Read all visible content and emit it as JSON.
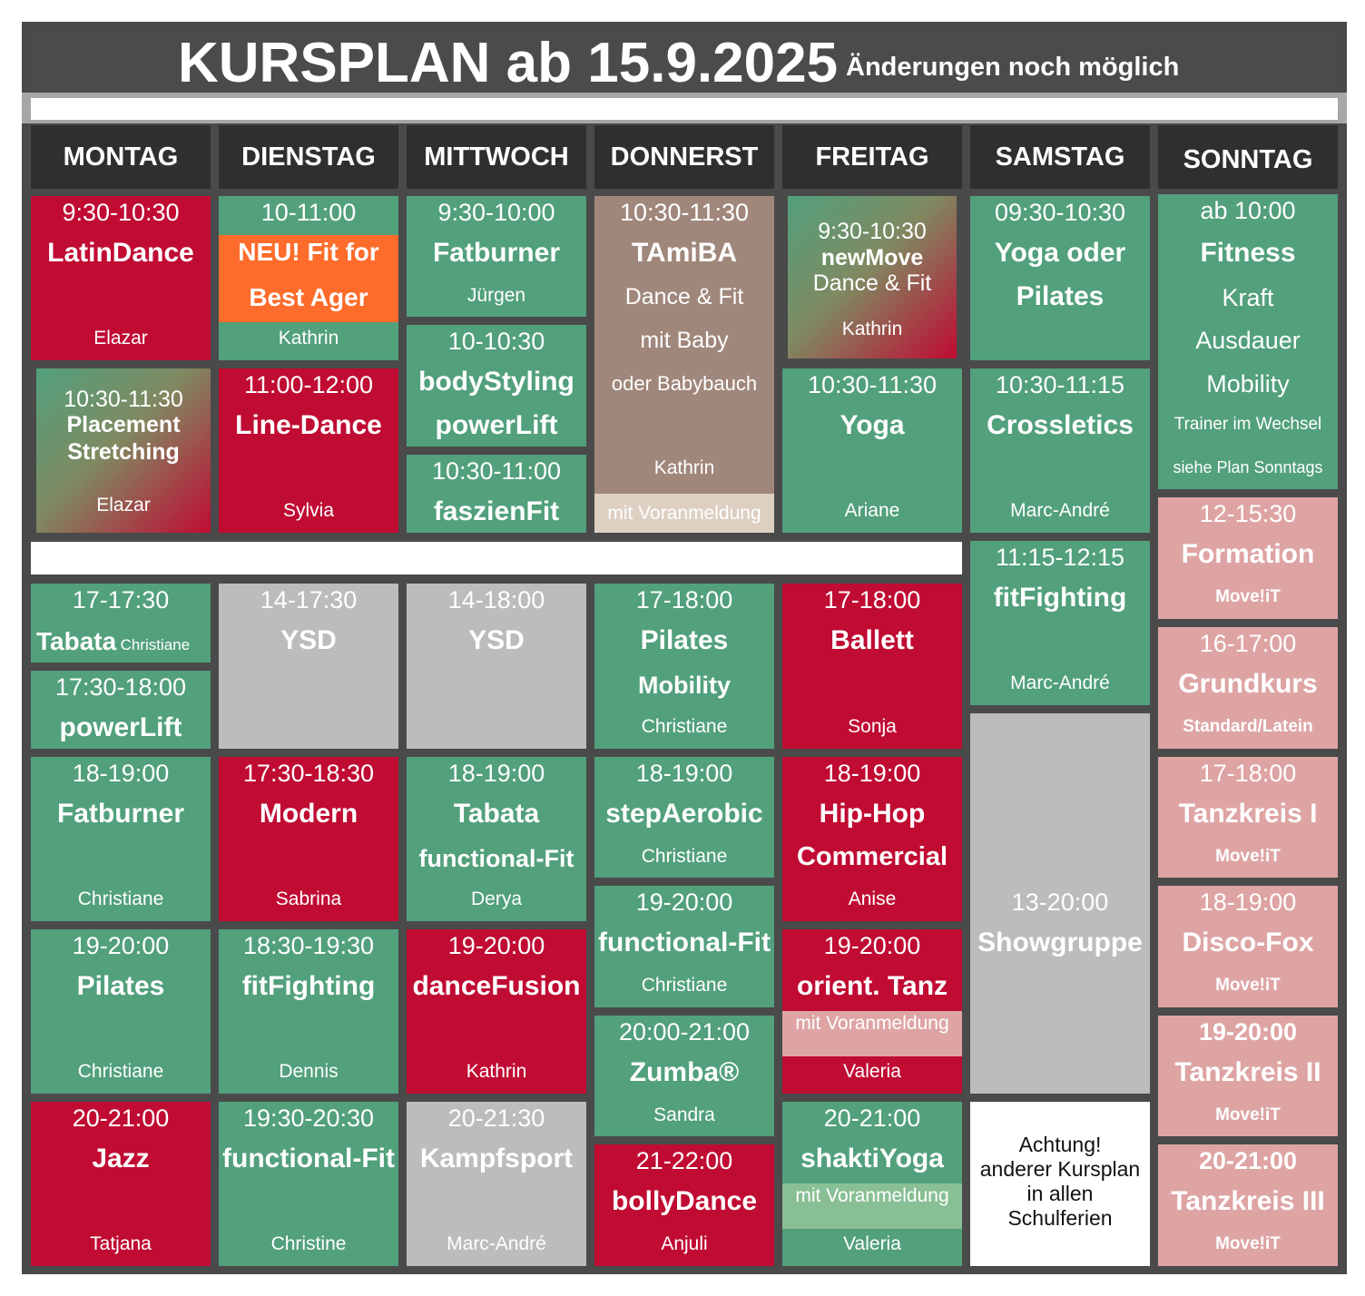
{
  "header": {
    "title": "KURSPLAN  ab 15.9.2025",
    "note": "Änderungen noch möglich"
  },
  "days": [
    "MONTAG",
    "DIENSTAG",
    "MITTWOCH",
    "DONNERST",
    "FREITAG",
    "SAMSTAG",
    "SONNTAG"
  ],
  "cards": [
    {
      "id": "mo1",
      "lines": [
        "9:30-10:30",
        "LatinDance",
        "Elazar"
      ]
    },
    {
      "id": "mo2",
      "lines": [
        "10:30-11:30",
        "Placement",
        "Stretching",
        "Elazar"
      ]
    },
    {
      "id": "mo3",
      "lines": [
        "17-17:30",
        "Tabata",
        "Christiane"
      ]
    },
    {
      "id": "mo4",
      "lines": [
        "17:30-18:00",
        "powerLift"
      ]
    },
    {
      "id": "mo5",
      "lines": [
        "18-19:00",
        "Fatburner",
        "Christiane"
      ]
    },
    {
      "id": "mo6",
      "lines": [
        "19-20:00",
        "Pilates",
        "Christiane"
      ]
    },
    {
      "id": "mo7",
      "lines": [
        "20-21:00",
        "Jazz",
        "Tatjana"
      ]
    },
    {
      "id": "di1",
      "lines": [
        "10-11:00",
        "NEU! Fit for",
        "Best Ager",
        "Kathrin"
      ]
    },
    {
      "id": "di2",
      "lines": [
        "11:00-12:00",
        "Line-Dance",
        "Sylvia"
      ]
    },
    {
      "id": "di3",
      "lines": [
        "14-17:30",
        "YSD"
      ]
    },
    {
      "id": "di4",
      "lines": [
        "17:30-18:30",
        "Modern",
        "Sabrina"
      ]
    },
    {
      "id": "di5",
      "lines": [
        "18:30-19:30",
        "fitFighting",
        "Dennis"
      ]
    },
    {
      "id": "di6",
      "lines": [
        "19:30-20:30",
        "functional-Fit",
        "Christine"
      ]
    },
    {
      "id": "mi1",
      "lines": [
        "9:30-10:00",
        "Fatburner",
        "Jürgen"
      ]
    },
    {
      "id": "mi2",
      "lines": [
        "10-10:30",
        "bodyStyling",
        "powerLift"
      ]
    },
    {
      "id": "mi3",
      "lines": [
        "10:30-11:00",
        "faszienFit"
      ]
    },
    {
      "id": "mi4",
      "lines": [
        "14-18:00",
        "YSD"
      ]
    },
    {
      "id": "mi5",
      "lines": [
        "18-19:00",
        "Tabata",
        "functional-Fit",
        "Derya"
      ]
    },
    {
      "id": "mi6",
      "lines": [
        "19-20:00",
        "danceFusion",
        "Kathrin"
      ]
    },
    {
      "id": "mi7",
      "lines": [
        "20-21:30",
        "Kampfsport",
        "Marc-André"
      ]
    },
    {
      "id": "do1",
      "lines": [
        "10:30-11:30",
        "TAmiBA",
        "Dance & Fit",
        "mit Baby",
        "oder Babybauch",
        "Kathrin",
        "mit Voranmeldung"
      ]
    },
    {
      "id": "do2",
      "lines": [
        "17-18:00",
        "Pilates",
        "Mobility",
        "Christiane"
      ]
    },
    {
      "id": "do3",
      "lines": [
        "18-19:00",
        "stepAerobic",
        "Christiane"
      ]
    },
    {
      "id": "do4",
      "lines": [
        "19-20:00",
        "functional-Fit",
        "Christiane"
      ]
    },
    {
      "id": "do5",
      "lines": [
        "20:00-21:00",
        "Zumba®",
        "Sandra"
      ]
    },
    {
      "id": "do6",
      "lines": [
        "21-22:00",
        "bollyDance",
        "Anjuli"
      ]
    },
    {
      "id": "fr1",
      "lines": [
        "9:30-10:30",
        "newMove",
        "Dance & Fit",
        "Kathrin"
      ]
    },
    {
      "id": "fr2",
      "lines": [
        "10:30-11:30",
        "Yoga",
        "Ariane"
      ]
    },
    {
      "id": "fr3",
      "lines": [
        "17-18:00",
        "Ballett",
        "Sonja"
      ]
    },
    {
      "id": "fr4",
      "lines": [
        "18-19:00",
        "Hip-Hop",
        "Commercial",
        "Anise"
      ]
    },
    {
      "id": "fr5",
      "lines": [
        "19-20:00",
        "orient. Tanz",
        "mit Voranmeldung",
        "Valeria"
      ]
    },
    {
      "id": "fr6",
      "lines": [
        "20-21:00",
        "shaktiYoga",
        "mit Voranmeldung",
        "Valeria"
      ]
    },
    {
      "id": "sa1",
      "lines": [
        "09:30-10:30",
        "Yoga oder",
        "Pilates"
      ]
    },
    {
      "id": "sa2",
      "lines": [
        "10:30-11:15",
        "Crossletics",
        "Marc-André"
      ]
    },
    {
      "id": "sa3",
      "lines": [
        "11:15-12:15",
        "fitFighting",
        "Marc-André"
      ]
    },
    {
      "id": "sa4",
      "lines": [
        "13-20:00",
        "Showgruppe"
      ]
    },
    {
      "id": "sa5",
      "lines": [
        "Achtung!",
        "anderer Kursplan",
        "in allen",
        "Schulferien"
      ]
    },
    {
      "id": "so1",
      "lines": [
        "ab 10:00",
        "Fitness",
        "Kraft",
        "Ausdauer",
        "Mobility",
        "Trainer im Wechsel",
        "siehe Plan Sonntags"
      ]
    },
    {
      "id": "so2",
      "lines": [
        "12-15:30",
        "Formation",
        "Move!iT"
      ]
    },
    {
      "id": "so3",
      "lines": [
        "16-17:00",
        "Grundkurs",
        "Standard/Latein"
      ]
    },
    {
      "id": "so4",
      "lines": [
        "17-18:00",
        "Tanzkreis I",
        "Move!iT"
      ]
    },
    {
      "id": "so5",
      "lines": [
        "18-19:00",
        "Disco-Fox",
        "Move!iT"
      ]
    },
    {
      "id": "so6",
      "lines": [
        "19-20:00",
        "Tanzkreis II",
        "Move!iT"
      ]
    },
    {
      "id": "so7",
      "lines": [
        "20-21:00",
        "Tanzkreis III",
        "Move!iT"
      ]
    }
  ]
}
